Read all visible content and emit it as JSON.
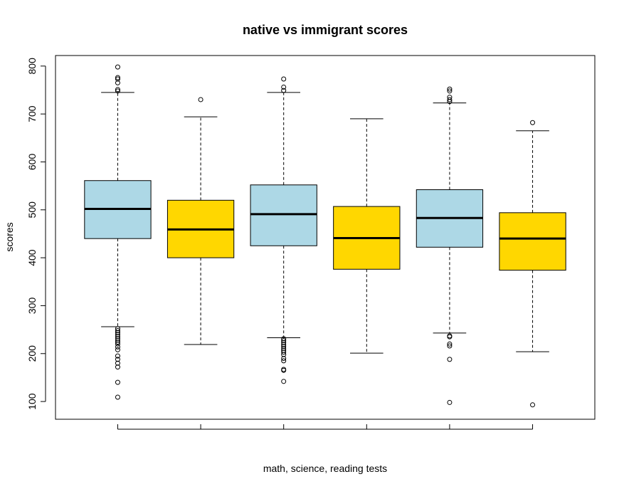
{
  "chart_data": {
    "type": "boxplot",
    "title": "native vs immigrant scores",
    "xlabel": "math, science, reading tests",
    "ylabel": "scores",
    "ylim": [
      63,
      822
    ],
    "yticks": [
      100,
      200,
      300,
      400,
      500,
      600,
      700,
      800
    ],
    "grid": false,
    "legend": "none",
    "boxes": [
      {
        "color": "#ADD8E6",
        "whisker_low": 256,
        "q1": 440,
        "median": 502,
        "q3": 561,
        "whisker_high": 745,
        "outliers": [
          109,
          140,
          172,
          180,
          188,
          195,
          208,
          214,
          220,
          224,
          228,
          232,
          236,
          240,
          244,
          248,
          252,
          748,
          751,
          765,
          773,
          776,
          798
        ]
      },
      {
        "color": "#FFD700",
        "whisker_low": 219,
        "q1": 400,
        "median": 459,
        "q3": 520,
        "whisker_high": 694,
        "outliers": [
          730
        ]
      },
      {
        "color": "#ADD8E6",
        "whisker_low": 233,
        "q1": 425,
        "median": 491,
        "q3": 552,
        "whisker_high": 745,
        "outliers": [
          142,
          165,
          167,
          185,
          190,
          198,
          203,
          207,
          211,
          215,
          219,
          223,
          227,
          231,
          749,
          756,
          773
        ]
      },
      {
        "color": "#FFD700",
        "whisker_low": 201,
        "q1": 376,
        "median": 441,
        "q3": 507,
        "whisker_high": 690,
        "outliers": []
      },
      {
        "color": "#ADD8E6",
        "whisker_low": 243,
        "q1": 422,
        "median": 483,
        "q3": 542,
        "whisker_high": 723,
        "outliers": [
          98,
          188,
          216,
          220,
          235,
          237,
          726,
          730,
          735,
          748,
          752
        ]
      },
      {
        "color": "#FFD700",
        "whisker_low": 204,
        "q1": 374,
        "median": 440,
        "q3": 494,
        "whisker_high": 665,
        "outliers": [
          93,
          682
        ]
      }
    ]
  }
}
